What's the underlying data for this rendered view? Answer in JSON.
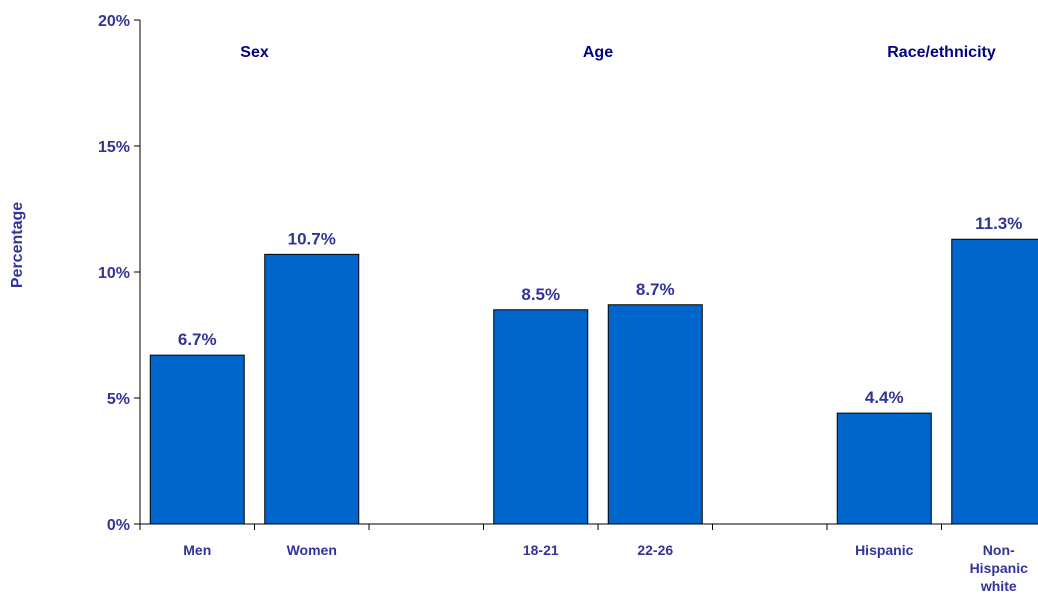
{
  "chart_data": {
    "type": "bar",
    "ylabel": "Percentage",
    "ylim": [
      0,
      20
    ],
    "yticks": [
      "0%",
      "5%",
      "10%",
      "15%",
      "20%"
    ],
    "bar_color": "#0066CC",
    "text_color": "#333399",
    "groups": [
      {
        "title": "Sex",
        "categories": [
          "Men",
          "Women"
        ],
        "values": [
          6.7,
          10.7
        ],
        "labels": [
          "6.7%",
          "10.7%"
        ]
      },
      {
        "title": "Age",
        "categories": [
          "18-21",
          "22-26"
        ],
        "values": [
          8.5,
          8.7
        ],
        "labels": [
          "8.5%",
          "8.7%"
        ]
      },
      {
        "title": "Race/ethnicity",
        "categories": [
          "Hispanic",
          "Non-Hispanic white"
        ],
        "values": [
          4.4,
          11.3
        ],
        "labels": [
          "4.4%",
          "11.3%"
        ]
      }
    ]
  }
}
